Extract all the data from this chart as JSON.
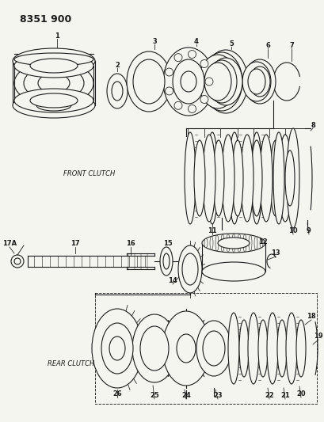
{
  "title": "8351 900",
  "bg": "#f5f5f0",
  "lc": "#1a1a1a",
  "front_clutch_label": "FRONT CLUTCH",
  "rear_clutch_label": "REAR CLUTCH"
}
